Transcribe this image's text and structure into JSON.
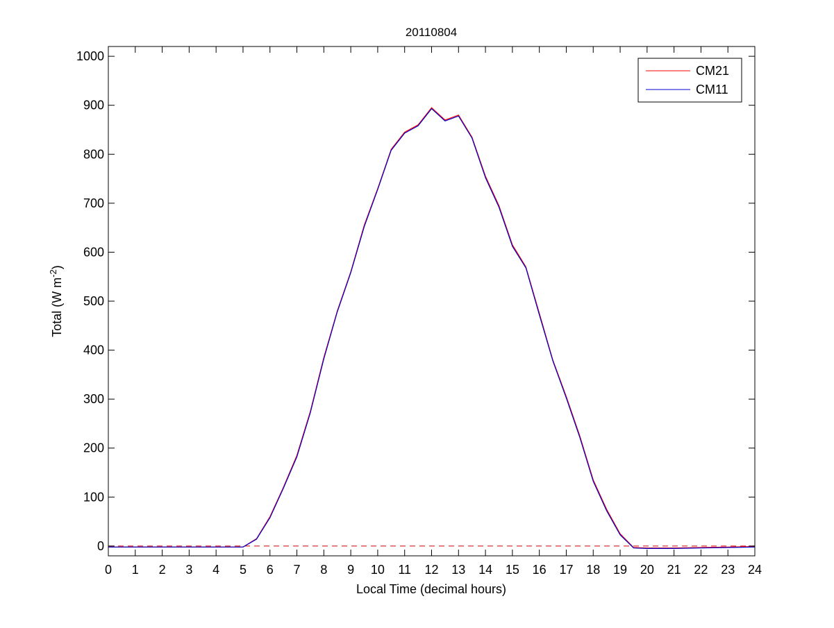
{
  "chart_data": {
    "type": "line",
    "title": "20110804",
    "xlabel": "Local Time (decimal hours)",
    "ylabel": "Total (W m-2)",
    "ylabel_parts": {
      "main": "Total (W m",
      "sup": "-2",
      "close": ")"
    },
    "xlim": [
      0,
      24
    ],
    "ylim": [
      -20,
      1020
    ],
    "xticks": [
      0,
      1,
      2,
      3,
      4,
      5,
      6,
      7,
      8,
      9,
      10,
      11,
      12,
      13,
      14,
      15,
      16,
      17,
      18,
      19,
      20,
      21,
      22,
      23,
      24
    ],
    "yticks": [
      0,
      100,
      200,
      300,
      400,
      500,
      600,
      700,
      800,
      900,
      1000
    ],
    "grid": false,
    "legend_position": "top-right",
    "reference_line": {
      "y": 0,
      "style": "dashed",
      "color": "#cc0000"
    },
    "series": [
      {
        "name": "CM21",
        "color": "#ff0000",
        "x": [
          0,
          5,
          5.5,
          6,
          6.5,
          7,
          7.5,
          8,
          8.5,
          9,
          9.5,
          10,
          10.5,
          11,
          11.5,
          12,
          12.5,
          13,
          13.5,
          14,
          14.5,
          15,
          15.5,
          16,
          16.5,
          17,
          17.5,
          18,
          18.5,
          19,
          19.5,
          20,
          21,
          22,
          23,
          24
        ],
        "values": [
          -2,
          -2,
          15,
          60,
          120,
          185,
          275,
          385,
          480,
          560,
          655,
          730,
          810,
          845,
          860,
          895,
          870,
          880,
          835,
          755,
          695,
          615,
          570,
          475,
          380,
          305,
          225,
          135,
          75,
          25,
          -3,
          -4,
          -4,
          -3,
          -2,
          -1
        ]
      },
      {
        "name": "CM11",
        "color": "#0000cc",
        "x": [
          0,
          5,
          5.5,
          6,
          6.5,
          7,
          7.5,
          8,
          8.5,
          9,
          9.5,
          10,
          10.5,
          11,
          11.5,
          12,
          12.5,
          13,
          13.5,
          14,
          14.5,
          15,
          15.5,
          16,
          16.5,
          17,
          17.5,
          18,
          18.5,
          19,
          19.5,
          20,
          21,
          22,
          23,
          24
        ],
        "values": [
          -2,
          -2,
          14,
          58,
          118,
          182,
          272,
          382,
          478,
          558,
          652,
          728,
          808,
          843,
          858,
          893,
          868,
          878,
          833,
          752,
          692,
          612,
          568,
          472,
          378,
          302,
          222,
          132,
          72,
          23,
          -4,
          -5,
          -5,
          -4,
          -3,
          -2
        ]
      }
    ]
  }
}
